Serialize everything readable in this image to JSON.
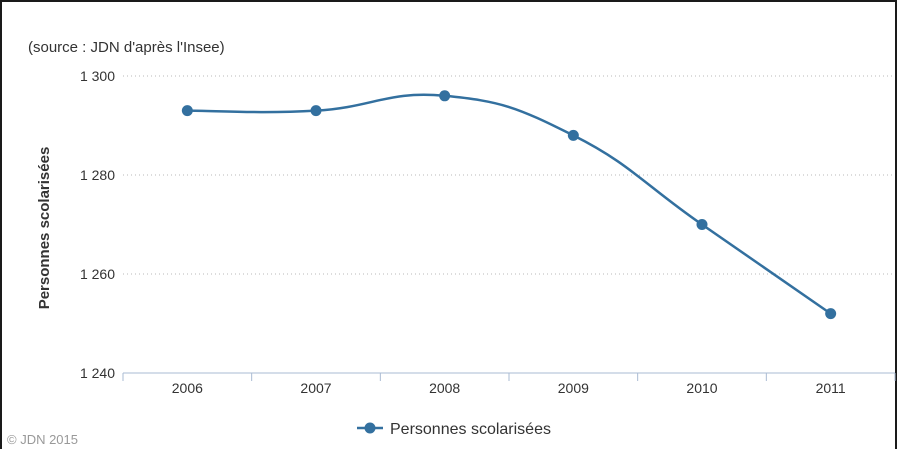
{
  "chart_data": {
    "type": "line",
    "note": "(source : JDN d'après l'Insee)",
    "xlabel": "",
    "ylabel": "Personnes scolarisées",
    "categories": [
      "2006",
      "2007",
      "2008",
      "2009",
      "2010",
      "2011"
    ],
    "y_ticks": [
      "1 240",
      "1 260",
      "1 280",
      "1 300"
    ],
    "y_tick_values": [
      1240,
      1260,
      1280,
      1300
    ],
    "ylim": [
      1240,
      1300
    ],
    "grid": true,
    "legend_position": "bottom",
    "series": [
      {
        "name": "Personnes scolarisées",
        "color": "#33709f",
        "values": [
          1293,
          1293,
          1296,
          1288,
          1270,
          1252
        ]
      }
    ],
    "credit": "© JDN 2015"
  }
}
